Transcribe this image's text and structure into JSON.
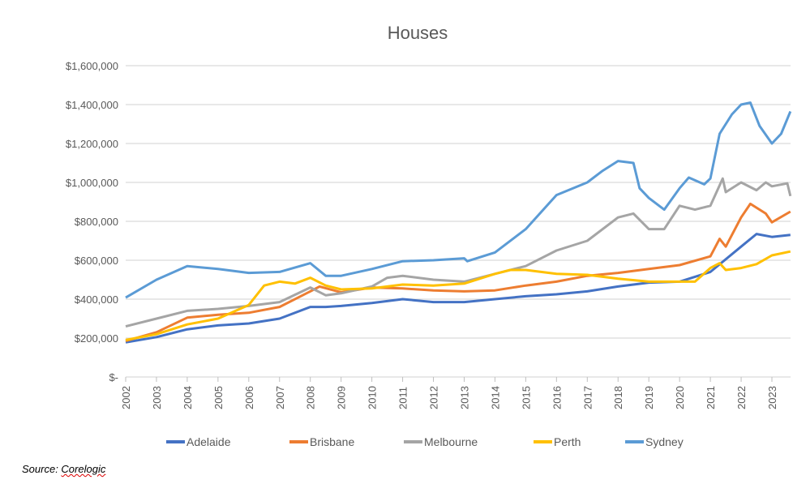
{
  "chart_data": {
    "type": "line",
    "title": "Houses",
    "xlabel": "",
    "ylabel": "",
    "xlim": [
      2002,
      2023.6
    ],
    "ylim": [
      0,
      1600000
    ],
    "x_ticks": [
      "2002",
      "2003",
      "2004",
      "2005",
      "2006",
      "2007",
      "2008",
      "2009",
      "2010",
      "2011",
      "2012",
      "2013",
      "2014",
      "2015",
      "2016",
      "2017",
      "2018",
      "2019",
      "2020",
      "2021",
      "2022",
      "2023"
    ],
    "y_ticks": [
      {
        "value": 0,
        "label": "$-"
      },
      {
        "value": 200000,
        "label": "$200,000"
      },
      {
        "value": 400000,
        "label": "$400,000"
      },
      {
        "value": 600000,
        "label": "$600,000"
      },
      {
        "value": 800000,
        "label": "$800,000"
      },
      {
        "value": 1000000,
        "label": "$1,000,000"
      },
      {
        "value": 1200000,
        "label": "$1,200,000"
      },
      {
        "value": 1400000,
        "label": "$1,400,000"
      },
      {
        "value": 1600000,
        "label": "$1,600,000"
      }
    ],
    "grid": true,
    "legend_position": "bottom",
    "series": [
      {
        "name": "Adelaide",
        "color": "#4472C4",
        "points": [
          [
            2002,
            178000
          ],
          [
            2003,
            205000
          ],
          [
            2004,
            245000
          ],
          [
            2005,
            265000
          ],
          [
            2006,
            275000
          ],
          [
            2007,
            300000
          ],
          [
            2008,
            360000
          ],
          [
            2008.5,
            360000
          ],
          [
            2009,
            365000
          ],
          [
            2010,
            380000
          ],
          [
            2011,
            400000
          ],
          [
            2012,
            385000
          ],
          [
            2013,
            385000
          ],
          [
            2014,
            400000
          ],
          [
            2015,
            415000
          ],
          [
            2016,
            425000
          ],
          [
            2017,
            440000
          ],
          [
            2018,
            465000
          ],
          [
            2019,
            485000
          ],
          [
            2020,
            490000
          ],
          [
            2021,
            540000
          ],
          [
            2022,
            670000
          ],
          [
            2022.5,
            735000
          ],
          [
            2023,
            720000
          ],
          [
            2023.6,
            730000
          ]
        ]
      },
      {
        "name": "Brisbane",
        "color": "#ED7D31",
        "points": [
          [
            2002,
            185000
          ],
          [
            2003,
            230000
          ],
          [
            2004,
            305000
          ],
          [
            2005,
            320000
          ],
          [
            2006,
            330000
          ],
          [
            2007,
            360000
          ],
          [
            2008,
            440000
          ],
          [
            2008.3,
            465000
          ],
          [
            2009,
            435000
          ],
          [
            2010,
            460000
          ],
          [
            2011,
            455000
          ],
          [
            2012,
            445000
          ],
          [
            2013,
            440000
          ],
          [
            2014,
            445000
          ],
          [
            2015,
            470000
          ],
          [
            2016,
            490000
          ],
          [
            2017,
            520000
          ],
          [
            2018,
            535000
          ],
          [
            2019,
            555000
          ],
          [
            2020,
            575000
          ],
          [
            2021,
            620000
          ],
          [
            2021.3,
            710000
          ],
          [
            2021.5,
            670000
          ],
          [
            2022,
            820000
          ],
          [
            2022.3,
            890000
          ],
          [
            2022.8,
            840000
          ],
          [
            2023,
            795000
          ],
          [
            2023.6,
            850000
          ]
        ]
      },
      {
        "name": "Melbourne",
        "color": "#A5A5A5",
        "points": [
          [
            2002,
            260000
          ],
          [
            2003,
            300000
          ],
          [
            2004,
            340000
          ],
          [
            2005,
            350000
          ],
          [
            2006,
            365000
          ],
          [
            2007,
            385000
          ],
          [
            2008,
            460000
          ],
          [
            2008.5,
            420000
          ],
          [
            2009,
            430000
          ],
          [
            2010,
            465000
          ],
          [
            2010.5,
            510000
          ],
          [
            2011,
            520000
          ],
          [
            2012,
            500000
          ],
          [
            2013,
            490000
          ],
          [
            2014,
            530000
          ],
          [
            2015,
            570000
          ],
          [
            2016,
            650000
          ],
          [
            2017,
            700000
          ],
          [
            2018,
            820000
          ],
          [
            2018.5,
            840000
          ],
          [
            2019,
            760000
          ],
          [
            2019.5,
            760000
          ],
          [
            2020,
            880000
          ],
          [
            2020.5,
            860000
          ],
          [
            2021,
            880000
          ],
          [
            2021.4,
            1020000
          ],
          [
            2021.5,
            950000
          ],
          [
            2022,
            1000000
          ],
          [
            2022.5,
            960000
          ],
          [
            2022.8,
            1000000
          ],
          [
            2023,
            980000
          ],
          [
            2023.5,
            995000
          ],
          [
            2023.6,
            930000
          ]
        ]
      },
      {
        "name": "Perth",
        "color": "#FFC000",
        "points": [
          [
            2002,
            190000
          ],
          [
            2003,
            220000
          ],
          [
            2004,
            270000
          ],
          [
            2005,
            300000
          ],
          [
            2006,
            370000
          ],
          [
            2006.5,
            470000
          ],
          [
            2007,
            490000
          ],
          [
            2007.5,
            480000
          ],
          [
            2008,
            510000
          ],
          [
            2008.5,
            470000
          ],
          [
            2009,
            450000
          ],
          [
            2010,
            455000
          ],
          [
            2011,
            475000
          ],
          [
            2012,
            470000
          ],
          [
            2013,
            480000
          ],
          [
            2014,
            530000
          ],
          [
            2014.5,
            550000
          ],
          [
            2015,
            550000
          ],
          [
            2016,
            530000
          ],
          [
            2017,
            525000
          ],
          [
            2018,
            505000
          ],
          [
            2019,
            490000
          ],
          [
            2020,
            490000
          ],
          [
            2020.5,
            490000
          ],
          [
            2021,
            560000
          ],
          [
            2021.3,
            585000
          ],
          [
            2021.5,
            550000
          ],
          [
            2022,
            560000
          ],
          [
            2022.5,
            580000
          ],
          [
            2023,
            625000
          ],
          [
            2023.6,
            645000
          ]
        ]
      },
      {
        "name": "Sydney",
        "color": "#5B9BD5",
        "points": [
          [
            2002,
            408000
          ],
          [
            2003,
            500000
          ],
          [
            2004,
            570000
          ],
          [
            2005,
            555000
          ],
          [
            2006,
            535000
          ],
          [
            2007,
            540000
          ],
          [
            2008,
            585000
          ],
          [
            2008.5,
            520000
          ],
          [
            2009,
            520000
          ],
          [
            2010,
            555000
          ],
          [
            2011,
            595000
          ],
          [
            2012,
            600000
          ],
          [
            2013,
            610000
          ],
          [
            2013.1,
            595000
          ],
          [
            2014,
            640000
          ],
          [
            2015,
            760000
          ],
          [
            2016,
            935000
          ],
          [
            2017,
            1000000
          ],
          [
            2017.5,
            1060000
          ],
          [
            2018,
            1110000
          ],
          [
            2018.5,
            1100000
          ],
          [
            2018.7,
            970000
          ],
          [
            2019,
            920000
          ],
          [
            2019.5,
            860000
          ],
          [
            2020,
            970000
          ],
          [
            2020.3,
            1025000
          ],
          [
            2020.8,
            990000
          ],
          [
            2021,
            1020000
          ],
          [
            2021.3,
            1250000
          ],
          [
            2021.7,
            1350000
          ],
          [
            2022,
            1400000
          ],
          [
            2022.3,
            1410000
          ],
          [
            2022.6,
            1290000
          ],
          [
            2023,
            1200000
          ],
          [
            2023.3,
            1250000
          ],
          [
            2023.6,
            1365000
          ]
        ]
      }
    ]
  },
  "source": {
    "prefix": "Source: ",
    "name": "Corelogic"
  }
}
